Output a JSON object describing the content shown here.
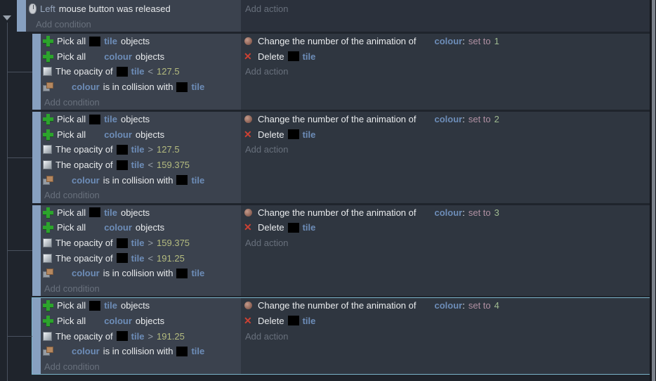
{
  "colors": {
    "page_bg": "#1f242c",
    "conditions_bg": "#3b424e",
    "actions_bg": "#2f3640",
    "root_actions_bg": "#2b313c",
    "event_bar": "#87a0c0",
    "selection_border": "#7cb4ca",
    "tree_line": "#49515e",
    "text": "#e9ebed",
    "param": "#97a6bd",
    "object_name": "#6d8db8",
    "operator": "#9aa2ac",
    "number": "#b4bb7f",
    "set_to": "#b191a3",
    "anim_number": "#a0bb91",
    "muted_label": "#68707c",
    "pick_plus": "#2ca42c",
    "delete_x": "#cd4133",
    "scroll_track": "#14171c",
    "scroll_thumb": "#7b818a"
  },
  "root_event": {
    "conditions": [
      {
        "icon": "mouse-icon",
        "segments": [
          [
            "param",
            "Left"
          ],
          [
            "text",
            "mouse button was released"
          ]
        ]
      }
    ],
    "add_condition": "Add condition",
    "actions": [],
    "add_action": "Add action"
  },
  "events": [
    {
      "selected": false,
      "conditions": [
        {
          "icon": "pick-icon",
          "segments": [
            [
              "text",
              "Pick all"
            ],
            [
              "thumb",
              ""
            ],
            [
              "object",
              "tile"
            ],
            [
              "text",
              "objects"
            ]
          ]
        },
        {
          "icon": "pick-icon",
          "segments": [
            [
              "text",
              "Pick all"
            ],
            [
              "blank",
              ""
            ],
            [
              "object",
              "colour"
            ],
            [
              "text",
              "objects"
            ]
          ]
        },
        {
          "icon": "opacity-icon",
          "segments": [
            [
              "text",
              "The opacity of"
            ],
            [
              "thumb",
              ""
            ],
            [
              "object",
              "tile"
            ],
            [
              "op",
              "<"
            ],
            [
              "num",
              "127.5"
            ]
          ]
        },
        {
          "icon": "collision-icon",
          "segments": [
            [
              "blank",
              ""
            ],
            [
              "object",
              "colour"
            ],
            [
              "text",
              "is in collision with"
            ],
            [
              "thumb",
              ""
            ],
            [
              "object",
              "tile"
            ]
          ]
        }
      ],
      "add_condition": "Add condition",
      "actions": [
        {
          "icon": "animation-icon",
          "segments": [
            [
              "text",
              "Change the number of the animation of"
            ],
            [
              "blank",
              ""
            ],
            [
              "object",
              "colour"
            ],
            [
              "colon",
              ":"
            ],
            [
              "setto",
              "set to"
            ],
            [
              "animnum",
              "1"
            ]
          ]
        },
        {
          "icon": "delete-icon",
          "segments": [
            [
              "text",
              "Delete"
            ],
            [
              "thumb",
              ""
            ],
            [
              "object",
              "tile"
            ]
          ]
        }
      ],
      "add_action": "Add action"
    },
    {
      "selected": false,
      "conditions": [
        {
          "icon": "pick-icon",
          "segments": [
            [
              "text",
              "Pick all"
            ],
            [
              "thumb",
              ""
            ],
            [
              "object",
              "tile"
            ],
            [
              "text",
              "objects"
            ]
          ]
        },
        {
          "icon": "pick-icon",
          "segments": [
            [
              "text",
              "Pick all"
            ],
            [
              "blank",
              ""
            ],
            [
              "object",
              "colour"
            ],
            [
              "text",
              "objects"
            ]
          ]
        },
        {
          "icon": "opacity-icon",
          "segments": [
            [
              "text",
              "The opacity of"
            ],
            [
              "thumb",
              ""
            ],
            [
              "object",
              "tile"
            ],
            [
              "op",
              ">"
            ],
            [
              "num",
              "127.5"
            ]
          ]
        },
        {
          "icon": "opacity-icon",
          "segments": [
            [
              "text",
              "The opacity of"
            ],
            [
              "thumb",
              ""
            ],
            [
              "object",
              "tile"
            ],
            [
              "op",
              "<"
            ],
            [
              "num",
              "159.375"
            ]
          ]
        },
        {
          "icon": "collision-icon",
          "segments": [
            [
              "blank",
              ""
            ],
            [
              "object",
              "colour"
            ],
            [
              "text",
              "is in collision with"
            ],
            [
              "thumb",
              ""
            ],
            [
              "object",
              "tile"
            ]
          ]
        }
      ],
      "add_condition": "Add condition",
      "actions": [
        {
          "icon": "animation-icon",
          "segments": [
            [
              "text",
              "Change the number of the animation of"
            ],
            [
              "blank",
              ""
            ],
            [
              "object",
              "colour"
            ],
            [
              "colon",
              ":"
            ],
            [
              "setto",
              "set to"
            ],
            [
              "animnum",
              "2"
            ]
          ]
        },
        {
          "icon": "delete-icon",
          "segments": [
            [
              "text",
              "Delete"
            ],
            [
              "thumb",
              ""
            ],
            [
              "object",
              "tile"
            ]
          ]
        }
      ],
      "add_action": "Add action"
    },
    {
      "selected": false,
      "conditions": [
        {
          "icon": "pick-icon",
          "segments": [
            [
              "text",
              "Pick all"
            ],
            [
              "thumb",
              ""
            ],
            [
              "object",
              "tile"
            ],
            [
              "text",
              "objects"
            ]
          ]
        },
        {
          "icon": "pick-icon",
          "segments": [
            [
              "text",
              "Pick all"
            ],
            [
              "blank",
              ""
            ],
            [
              "object",
              "colour"
            ],
            [
              "text",
              "objects"
            ]
          ]
        },
        {
          "icon": "opacity-icon",
          "segments": [
            [
              "text",
              "The opacity of"
            ],
            [
              "thumb",
              ""
            ],
            [
              "object",
              "tile"
            ],
            [
              "op",
              ">"
            ],
            [
              "num",
              "159.375"
            ]
          ]
        },
        {
          "icon": "opacity-icon",
          "segments": [
            [
              "text",
              "The opacity of"
            ],
            [
              "thumb",
              ""
            ],
            [
              "object",
              "tile"
            ],
            [
              "op",
              "<"
            ],
            [
              "num",
              "191.25"
            ]
          ]
        },
        {
          "icon": "collision-icon",
          "segments": [
            [
              "blank",
              ""
            ],
            [
              "object",
              "colour"
            ],
            [
              "text",
              "is in collision with"
            ],
            [
              "thumb",
              ""
            ],
            [
              "object",
              "tile"
            ]
          ]
        }
      ],
      "add_condition": "Add condition",
      "actions": [
        {
          "icon": "animation-icon",
          "segments": [
            [
              "text",
              "Change the number of the animation of"
            ],
            [
              "blank",
              ""
            ],
            [
              "object",
              "colour"
            ],
            [
              "colon",
              ":"
            ],
            [
              "setto",
              "set to"
            ],
            [
              "animnum",
              "3"
            ]
          ]
        },
        {
          "icon": "delete-icon",
          "segments": [
            [
              "text",
              "Delete"
            ],
            [
              "thumb",
              ""
            ],
            [
              "object",
              "tile"
            ]
          ]
        }
      ],
      "add_action": "Add action"
    },
    {
      "selected": true,
      "conditions": [
        {
          "icon": "pick-icon",
          "segments": [
            [
              "text",
              "Pick all"
            ],
            [
              "thumb",
              ""
            ],
            [
              "object",
              "tile"
            ],
            [
              "text",
              "objects"
            ]
          ]
        },
        {
          "icon": "pick-icon",
          "segments": [
            [
              "text",
              "Pick all"
            ],
            [
              "blank",
              ""
            ],
            [
              "object",
              "colour"
            ],
            [
              "text",
              "objects"
            ]
          ]
        },
        {
          "icon": "opacity-icon",
          "segments": [
            [
              "text",
              "The opacity of"
            ],
            [
              "thumb",
              ""
            ],
            [
              "object",
              "tile"
            ],
            [
              "op",
              ">"
            ],
            [
              "num",
              "191.25"
            ]
          ]
        },
        {
          "icon": "collision-icon",
          "segments": [
            [
              "blank",
              ""
            ],
            [
              "object",
              "colour"
            ],
            [
              "text",
              "is in collision with"
            ],
            [
              "thumb",
              ""
            ],
            [
              "object",
              "tile"
            ]
          ]
        }
      ],
      "add_condition": "Add condition",
      "actions": [
        {
          "icon": "animation-icon",
          "segments": [
            [
              "text",
              "Change the number of the animation of"
            ],
            [
              "blank",
              ""
            ],
            [
              "object",
              "colour"
            ],
            [
              "colon",
              ":"
            ],
            [
              "setto",
              "set to"
            ],
            [
              "animnum",
              "4"
            ]
          ]
        },
        {
          "icon": "delete-icon",
          "segments": [
            [
              "text",
              "Delete"
            ],
            [
              "thumb",
              ""
            ],
            [
              "object",
              "tile"
            ]
          ]
        }
      ],
      "add_action": "Add action"
    }
  ]
}
